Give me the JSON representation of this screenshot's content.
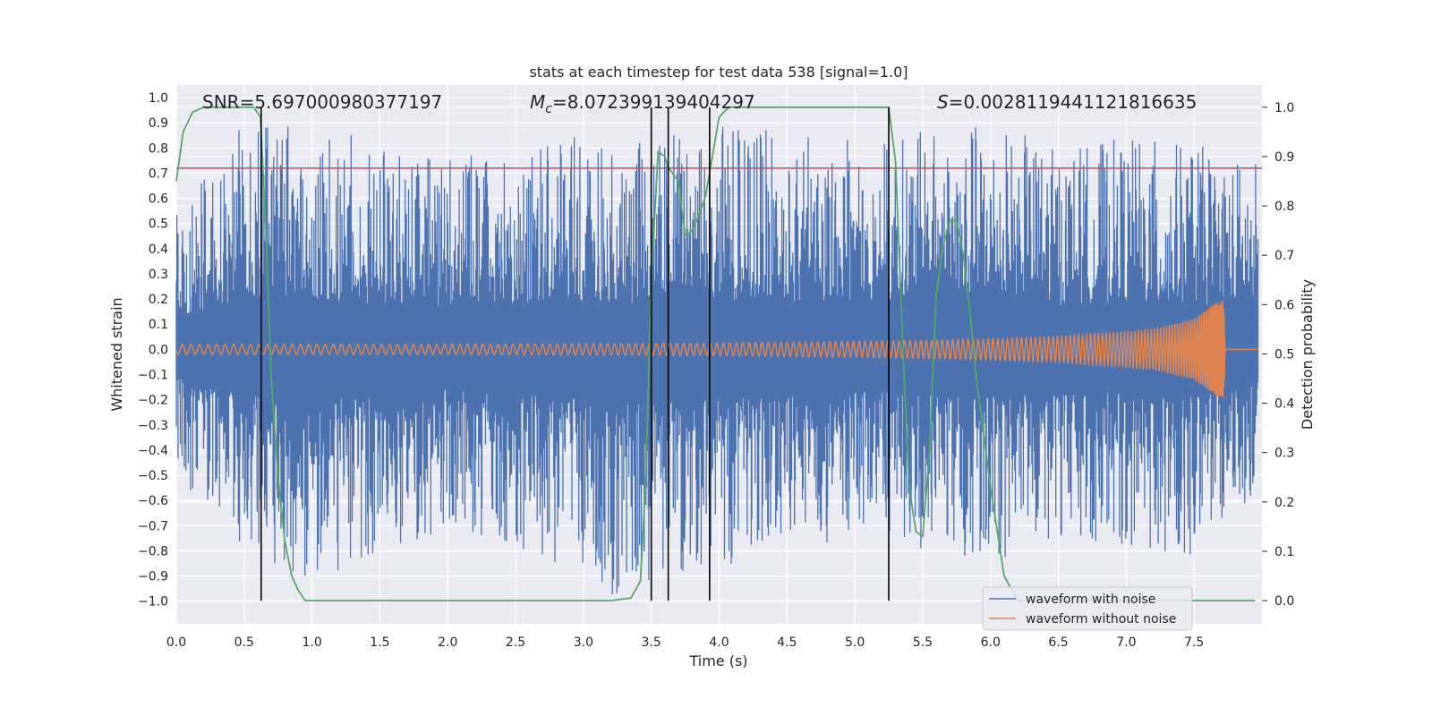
{
  "chart_data": {
    "type": "line",
    "title": "stats at each timestep for test data 538 [signal=1.0]",
    "xlabel": "Time (s)",
    "ylabel": "Whitened strain",
    "y2label": "Detection probability",
    "xlim": [
      0.0,
      8.0
    ],
    "ylim": [
      -1.09,
      1.05
    ],
    "y2lim": [
      -0.047,
      1.045
    ],
    "x_ticks": [
      "0.0",
      "0.5",
      "1.0",
      "1.5",
      "2.0",
      "2.5",
      "3.0",
      "3.5",
      "4.0",
      "4.5",
      "5.0",
      "5.5",
      "6.0",
      "6.5",
      "7.0",
      "7.5"
    ],
    "y_ticks": [
      "1.0",
      "0.9",
      "0.8",
      "0.7",
      "0.6",
      "0.5",
      "0.4",
      "0.3",
      "0.2",
      "0.1",
      "0.0",
      "−0.1",
      "−0.2",
      "−0.3",
      "−0.4",
      "−0.5",
      "−0.6",
      "−0.7",
      "−0.8",
      "−0.9",
      "−1.0"
    ],
    "y2_ticks": [
      "1.0",
      "0.9",
      "0.8",
      "0.7",
      "0.6",
      "0.5",
      "0.4",
      "0.3",
      "0.2",
      "0.1",
      "0.0"
    ],
    "stats": {
      "snr_label": "SNR",
      "snr": "5.697000980377197",
      "mc_label": "M",
      "mc_subscript": "c",
      "mc": "8.072399139404297",
      "s_label": "S",
      "s": "0.0028119441121816635"
    },
    "threshold": {
      "value": 0.72,
      "color": "#c44e52"
    },
    "vertical_lines_x": [
      0.625,
      3.5,
      3.625,
      3.93,
      5.25
    ],
    "series": [
      {
        "name": "waveform with noise",
        "color": "#4c72b0",
        "envelope_x": [
          0.0,
          0.1,
          0.5,
          1.0,
          2.0,
          3.0,
          3.2,
          4.0,
          5.0,
          6.0,
          6.5,
          7.0,
          7.5,
          7.97
        ],
        "envelope_max": [
          0.75,
          0.62,
          0.9,
          0.88,
          0.78,
          0.85,
          0.8,
          0.9,
          0.83,
          0.91,
          0.8,
          0.85,
          0.82,
          0.75
        ],
        "envelope_min": [
          -0.5,
          -0.6,
          -0.81,
          -0.92,
          -0.72,
          -0.88,
          -1.0,
          -0.87,
          -0.75,
          -0.85,
          -0.75,
          -0.78,
          -0.84,
          -0.6
        ]
      },
      {
        "name": "waveform without noise",
        "color": "#dd8452",
        "amplitude_x": [
          0.0,
          2.0,
          4.0,
          5.5,
          6.5,
          7.2,
          7.5,
          7.65,
          7.72,
          7.73,
          7.97
        ],
        "amplitude": [
          0.02,
          0.02,
          0.025,
          0.035,
          0.05,
          0.08,
          0.12,
          0.18,
          0.2,
          0.0,
          0.0
        ]
      },
      {
        "name": "detection probability",
        "color": "#55a868",
        "x": [
          0.0,
          0.05,
          0.12,
          0.2,
          0.3,
          0.4,
          0.5,
          0.57,
          0.62,
          0.66,
          0.7,
          0.75,
          0.8,
          0.85,
          0.9,
          0.95,
          1.0,
          1.5,
          2.0,
          2.5,
          3.0,
          3.2,
          3.35,
          3.42,
          3.46,
          3.5,
          3.55,
          3.6,
          3.62,
          3.7,
          3.75,
          3.8,
          3.85,
          3.9,
          3.95,
          4.0,
          4.07,
          4.12,
          4.5,
          5.0,
          5.25,
          5.3,
          5.35,
          5.4,
          5.45,
          5.5,
          5.55,
          5.6,
          5.65,
          5.7,
          5.75,
          5.8,
          5.85,
          5.9,
          6.0,
          6.1,
          6.2,
          6.3,
          6.5,
          7.0,
          7.5,
          7.95
        ],
        "values": [
          0.85,
          0.95,
          0.99,
          1.0,
          1.0,
          1.0,
          1.0,
          1.0,
          0.98,
          0.75,
          0.45,
          0.25,
          0.12,
          0.05,
          0.02,
          0.0,
          0.0,
          0.0,
          0.0,
          0.0,
          0.0,
          0.0,
          0.005,
          0.04,
          0.25,
          0.65,
          0.91,
          0.9,
          0.88,
          0.85,
          0.74,
          0.75,
          0.78,
          0.82,
          0.9,
          0.98,
          1.0,
          1.0,
          1.0,
          1.0,
          1.0,
          0.89,
          0.54,
          0.23,
          0.14,
          0.13,
          0.3,
          0.62,
          0.72,
          0.77,
          0.77,
          0.7,
          0.58,
          0.44,
          0.23,
          0.05,
          0.0,
          0.0,
          0.0,
          0.0,
          0.0,
          0.0
        ]
      }
    ],
    "legend": {
      "placement": "bottom-right",
      "entries": [
        "waveform with noise",
        "waveform without noise"
      ]
    },
    "colors": {
      "plot_background": "#eaeaf2",
      "grid": "#ffffff"
    }
  }
}
